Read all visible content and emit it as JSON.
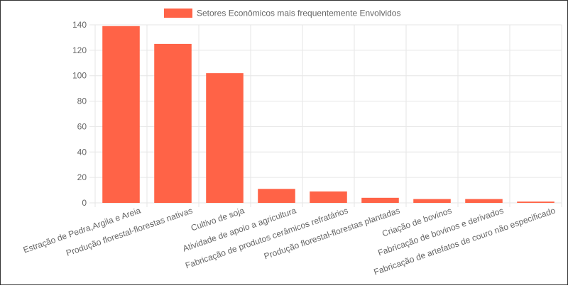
{
  "chart_data": {
    "type": "bar",
    "legend": {
      "label": "Setores Econômicos mais frequentemente Envolvidos",
      "placement": "top-center"
    },
    "categories": [
      "Estração de Pedra,Argila e Areia",
      "Produção florestal-florestas nativas",
      "Cultivo de soja",
      "Atividade de apoio a agricultura",
      "Fabricação de produtos cerâmicos refratários",
      "Produção florestal-florestas plantadas",
      "Criação de bovinos",
      "Fabricação de bovinos e derivados",
      "Fabricação de artefatos de couro não especificado"
    ],
    "series": [
      {
        "name": "Setores Econômicos mais frequentemente Envolvidos",
        "values": [
          139,
          125,
          102,
          11,
          9,
          4,
          3,
          3,
          1
        ]
      }
    ],
    "ylim": [
      0,
      140
    ],
    "yticks": [
      0,
      20,
      40,
      60,
      80,
      100,
      120,
      140
    ],
    "grid": true,
    "colors": {
      "bar": "#ff6347",
      "grid": "#e6e6e6",
      "axis_text": "#666666",
      "frame": "#333333"
    }
  }
}
